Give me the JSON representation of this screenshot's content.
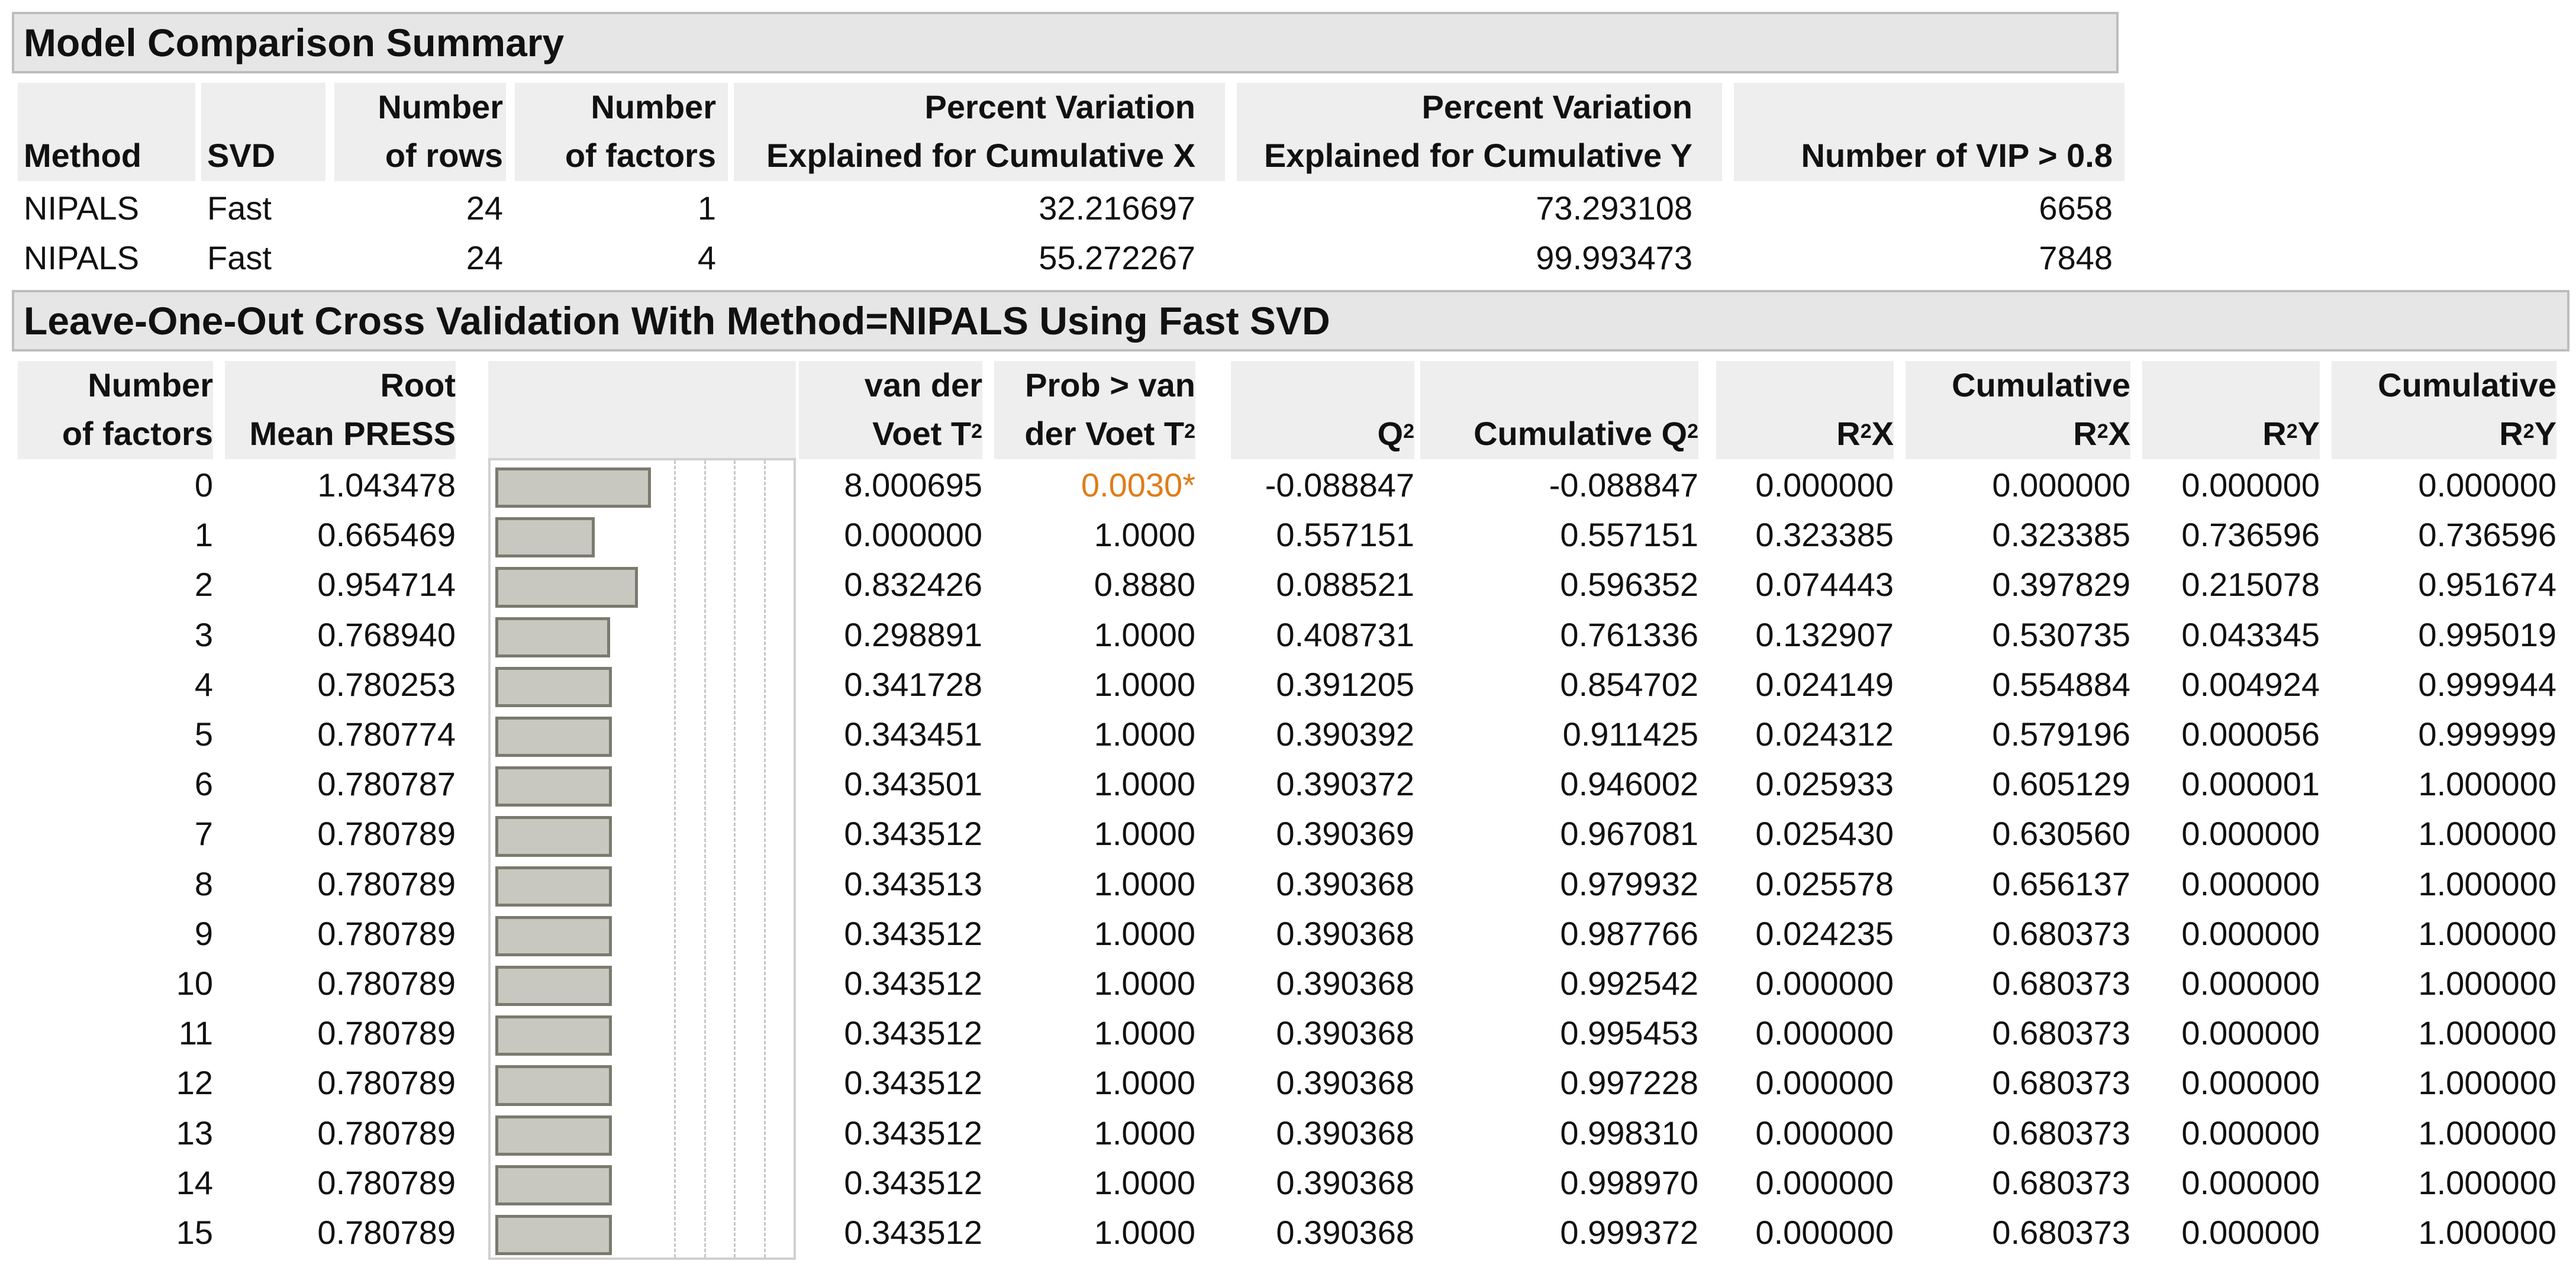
{
  "model_comparison": {
    "title": "Model Comparison Summary",
    "columns": [
      {
        "line1": "",
        "line2": "Method"
      },
      {
        "line1": "",
        "line2": "SVD"
      },
      {
        "line1": "Number",
        "line2": "of rows"
      },
      {
        "line1": "Number",
        "line2": "of factors"
      },
      {
        "line1": "Percent Variation",
        "line2": "Explained for Cumulative X"
      },
      {
        "line1": "Percent Variation",
        "line2": "Explained for Cumulative Y"
      },
      {
        "line1": "",
        "line2": "Number of VIP > 0.8"
      }
    ],
    "rows": [
      [
        "NIPALS",
        "Fast",
        "24",
        "1",
        "32.216697",
        "73.293108",
        "6658"
      ],
      [
        "NIPALS",
        "Fast",
        "24",
        "4",
        "55.272267",
        "99.993473",
        "7848"
      ]
    ]
  },
  "cross_validation": {
    "title": "Leave-One-Out Cross Validation With Method=NIPALS Using Fast SVD",
    "columns": [
      {
        "line1": "Number",
        "line2": "of factors"
      },
      {
        "line1": "Root",
        "line2": "Mean PRESS"
      },
      {
        "line1": "",
        "line2": ""
      },
      {
        "line1": "van der",
        "line2": "Voet T²"
      },
      {
        "line1": "Prob > van",
        "line2": "der Voet T²"
      },
      {
        "line1": "",
        "line2": "Q²"
      },
      {
        "line1": "",
        "line2": "Cumulative Q²"
      },
      {
        "line1": "",
        "line2": "R²X"
      },
      {
        "line1": "Cumulative",
        "line2": "R²X"
      },
      {
        "line1": "",
        "line2": "R²Y"
      },
      {
        "line1": "Cumulative",
        "line2": "R²Y"
      }
    ],
    "highlight_color": "#e07c19",
    "bar_scale_max": 2.0,
    "rows": [
      {
        "factors": "0",
        "press": "1.043478",
        "press_value": 1.043478,
        "voet": "8.000695",
        "prob": "0.0030*",
        "prob_highlight": true,
        "q2": "-0.088847",
        "cum_q2": "-0.088847",
        "r2x": "0.000000",
        "cum_r2x": "0.000000",
        "r2y": "0.000000",
        "cum_r2y": "0.000000"
      },
      {
        "factors": "1",
        "press": "0.665469",
        "press_value": 0.665469,
        "voet": "0.000000",
        "prob": "1.0000",
        "prob_highlight": false,
        "q2": "0.557151",
        "cum_q2": "0.557151",
        "r2x": "0.323385",
        "cum_r2x": "0.323385",
        "r2y": "0.736596",
        "cum_r2y": "0.736596"
      },
      {
        "factors": "2",
        "press": "0.954714",
        "press_value": 0.954714,
        "voet": "0.832426",
        "prob": "0.8880",
        "prob_highlight": false,
        "q2": "0.088521",
        "cum_q2": "0.596352",
        "r2x": "0.074443",
        "cum_r2x": "0.397829",
        "r2y": "0.215078",
        "cum_r2y": "0.951674"
      },
      {
        "factors": "3",
        "press": "0.768940",
        "press_value": 0.76894,
        "voet": "0.298891",
        "prob": "1.0000",
        "prob_highlight": false,
        "q2": "0.408731",
        "cum_q2": "0.761336",
        "r2x": "0.132907",
        "cum_r2x": "0.530735",
        "r2y": "0.043345",
        "cum_r2y": "0.995019"
      },
      {
        "factors": "4",
        "press": "0.780253",
        "press_value": 0.780253,
        "voet": "0.341728",
        "prob": "1.0000",
        "prob_highlight": false,
        "q2": "0.391205",
        "cum_q2": "0.854702",
        "r2x": "0.024149",
        "cum_r2x": "0.554884",
        "r2y": "0.004924",
        "cum_r2y": "0.999944"
      },
      {
        "factors": "5",
        "press": "0.780774",
        "press_value": 0.780774,
        "voet": "0.343451",
        "prob": "1.0000",
        "prob_highlight": false,
        "q2": "0.390392",
        "cum_q2": "0.911425",
        "r2x": "0.024312",
        "cum_r2x": "0.579196",
        "r2y": "0.000056",
        "cum_r2y": "0.999999"
      },
      {
        "factors": "6",
        "press": "0.780787",
        "press_value": 0.780787,
        "voet": "0.343501",
        "prob": "1.0000",
        "prob_highlight": false,
        "q2": "0.390372",
        "cum_q2": "0.946002",
        "r2x": "0.025933",
        "cum_r2x": "0.605129",
        "r2y": "0.000001",
        "cum_r2y": "1.000000"
      },
      {
        "factors": "7",
        "press": "0.780789",
        "press_value": 0.780789,
        "voet": "0.343512",
        "prob": "1.0000",
        "prob_highlight": false,
        "q2": "0.390369",
        "cum_q2": "0.967081",
        "r2x": "0.025430",
        "cum_r2x": "0.630560",
        "r2y": "0.000000",
        "cum_r2y": "1.000000"
      },
      {
        "factors": "8",
        "press": "0.780789",
        "press_value": 0.780789,
        "voet": "0.343513",
        "prob": "1.0000",
        "prob_highlight": false,
        "q2": "0.390368",
        "cum_q2": "0.979932",
        "r2x": "0.025578",
        "cum_r2x": "0.656137",
        "r2y": "0.000000",
        "cum_r2y": "1.000000"
      },
      {
        "factors": "9",
        "press": "0.780789",
        "press_value": 0.780789,
        "voet": "0.343512",
        "prob": "1.0000",
        "prob_highlight": false,
        "q2": "0.390368",
        "cum_q2": "0.987766",
        "r2x": "0.024235",
        "cum_r2x": "0.680373",
        "r2y": "0.000000",
        "cum_r2y": "1.000000"
      },
      {
        "factors": "10",
        "press": "0.780789",
        "press_value": 0.780789,
        "voet": "0.343512",
        "prob": "1.0000",
        "prob_highlight": false,
        "q2": "0.390368",
        "cum_q2": "0.992542",
        "r2x": "0.000000",
        "cum_r2x": "0.680373",
        "r2y": "0.000000",
        "cum_r2y": "1.000000"
      },
      {
        "factors": "11",
        "press": "0.780789",
        "press_value": 0.780789,
        "voet": "0.343512",
        "prob": "1.0000",
        "prob_highlight": false,
        "q2": "0.390368",
        "cum_q2": "0.995453",
        "r2x": "0.000000",
        "cum_r2x": "0.680373",
        "r2y": "0.000000",
        "cum_r2y": "1.000000"
      },
      {
        "factors": "12",
        "press": "0.780789",
        "press_value": 0.780789,
        "voet": "0.343512",
        "prob": "1.0000",
        "prob_highlight": false,
        "q2": "0.390368",
        "cum_q2": "0.997228",
        "r2x": "0.000000",
        "cum_r2x": "0.680373",
        "r2y": "0.000000",
        "cum_r2y": "1.000000"
      },
      {
        "factors": "13",
        "press": "0.780789",
        "press_value": 0.780789,
        "voet": "0.343512",
        "prob": "1.0000",
        "prob_highlight": false,
        "q2": "0.390368",
        "cum_q2": "0.998310",
        "r2x": "0.000000",
        "cum_r2x": "0.680373",
        "r2y": "0.000000",
        "cum_r2y": "1.000000"
      },
      {
        "factors": "14",
        "press": "0.780789",
        "press_value": 0.780789,
        "voet": "0.343512",
        "prob": "1.0000",
        "prob_highlight": false,
        "q2": "0.390368",
        "cum_q2": "0.998970",
        "r2x": "0.000000",
        "cum_r2x": "0.680373",
        "r2y": "0.000000",
        "cum_r2y": "1.000000"
      },
      {
        "factors": "15",
        "press": "0.780789",
        "press_value": 0.780789,
        "voet": "0.343512",
        "prob": "1.0000",
        "prob_highlight": false,
        "q2": "0.390368",
        "cum_q2": "0.999372",
        "r2x": "0.000000",
        "cum_r2x": "0.680373",
        "r2y": "0.000000",
        "cum_r2y": "1.000000"
      }
    ]
  }
}
